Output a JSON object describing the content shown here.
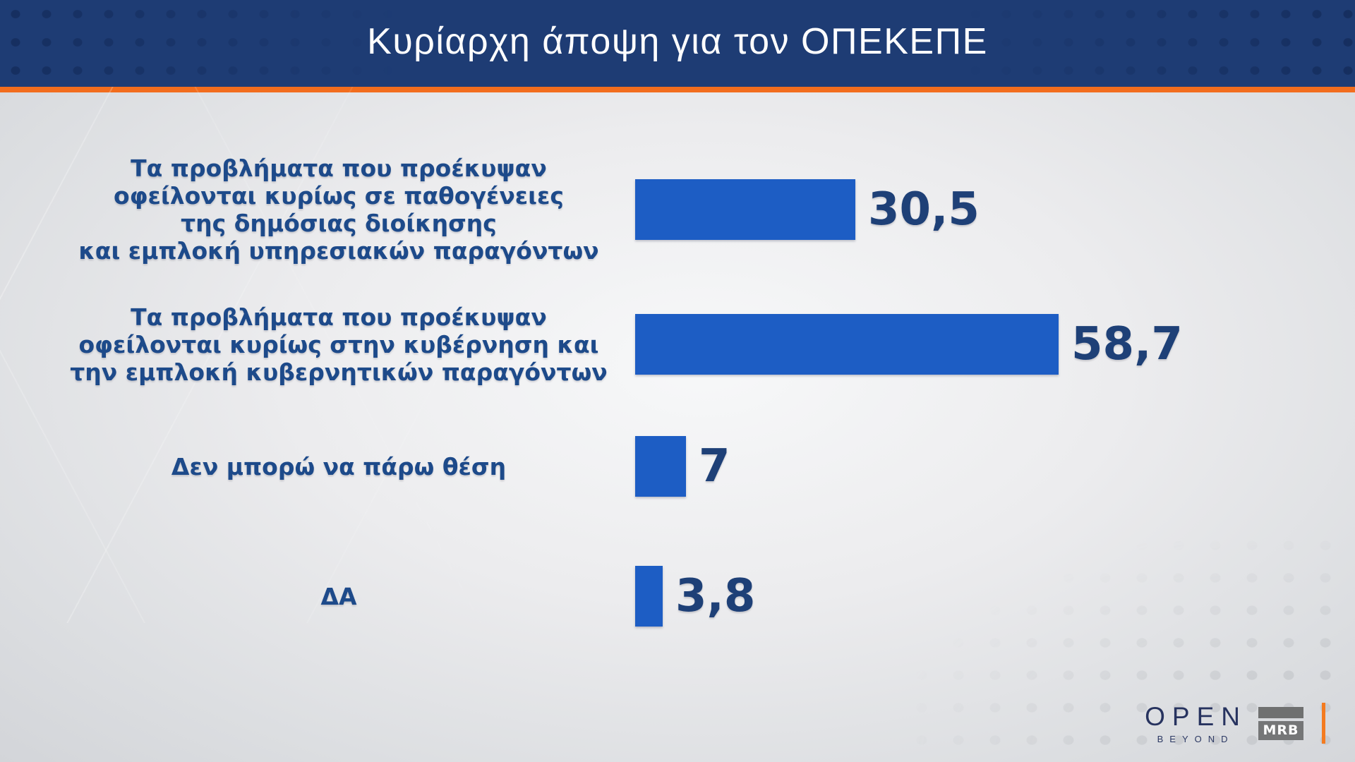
{
  "header": {
    "title": "Κυρίαρχη άποψη για τον ΟΠΕΚΕΠΕ"
  },
  "chart_data": {
    "type": "bar",
    "orientation": "horizontal",
    "title": "Κυρίαρχη άποψη για τον ΟΠΕΚΕΠΕ",
    "categories": [
      "Τα προβλήματα που προέκυψαν οφείλονται κυρίως σε παθογένειες της δημόσιας διοίκησης και εμπλοκή υπηρεσιακών παραγόντων",
      "Τα προβλήματα που προέκυψαν οφείλονται κυρίως στην κυβέρνηση και την εμπλοκή κυβερνητικών παραγόντων",
      "Δεν μπορώ να πάρω θέση",
      "ΔΑ"
    ],
    "values": [
      30.5,
      58.7,
      7,
      3.8
    ],
    "value_labels": [
      "30,5",
      "58,7",
      "7",
      "3,8"
    ],
    "xlim": [
      0,
      60
    ],
    "grid": false,
    "legend": false,
    "bar_color": "#1d5dc4"
  },
  "rows": [
    {
      "label_lines": [
        "Τα προβλήματα που προέκυψαν",
        "οφείλονται κυρίως σε παθογένειες",
        "της δημόσιας διοίκησης",
        "και εμπλοκή υπηρεσιακών παραγόντων"
      ],
      "value": 30.5,
      "value_label": "30,5"
    },
    {
      "label_lines": [
        "Τα προβλήματα που προέκυψαν",
        "οφείλονται κυρίως στην κυβέρνηση και",
        "την εμπλοκή κυβερνητικών παραγόντων"
      ],
      "value": 58.7,
      "value_label": "58,7"
    },
    {
      "label_lines": [
        "Δεν μπορώ να πάρω θέση"
      ],
      "value": 7,
      "value_label": "7"
    },
    {
      "label_lines": [
        "ΔΑ"
      ],
      "value": 3.8,
      "value_label": "3,8"
    }
  ],
  "footer": {
    "open_label": "OPEN",
    "open_sub": "BEYOND",
    "mrb_label": "MRB"
  },
  "colors": {
    "header_bg": "#1e3c74",
    "accent_orange": "#f26d1e",
    "bar_blue": "#1d5dc4",
    "label_navy": "#1d4a8a",
    "value_navy": "#1e4077"
  }
}
